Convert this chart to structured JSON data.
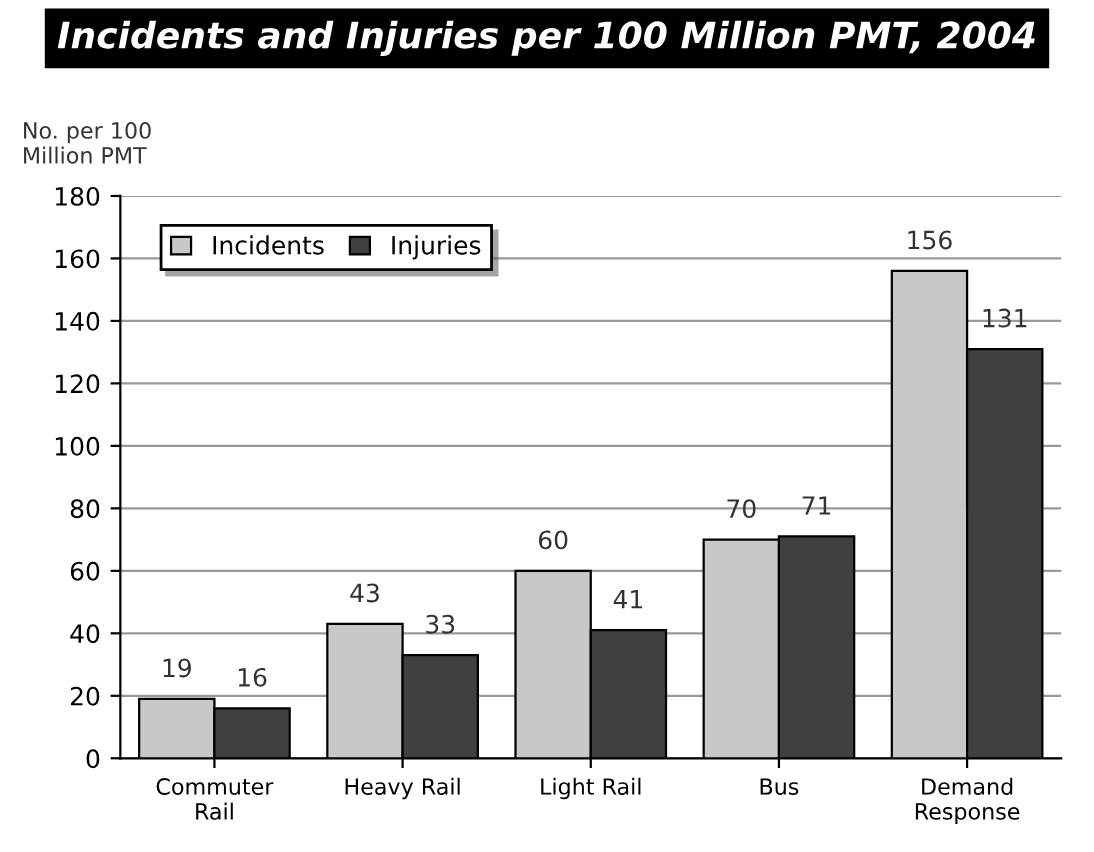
{
  "chart_data": {
    "type": "bar",
    "title": "Incidents and Injuries per 100 Million PMT, 2004",
    "ylabel": "No. per 100\nMillion PMT",
    "categories": [
      "Commuter\nRail",
      "Heavy Rail",
      "Light Rail",
      "Bus",
      "Demand\nResponse"
    ],
    "series": [
      {
        "name": "Incidents",
        "color": "#c8c8c8",
        "values": [
          19,
          43,
          60,
          70,
          156
        ]
      },
      {
        "name": "Injuries",
        "color": "#404040",
        "values": [
          16,
          33,
          41,
          71,
          131
        ]
      }
    ],
    "ylim": [
      0,
      180
    ],
    "yticks": [
      0,
      20,
      40,
      60,
      80,
      100,
      120,
      140,
      160,
      180
    ],
    "grid": "y",
    "legend": "top left",
    "data_labels": true
  }
}
